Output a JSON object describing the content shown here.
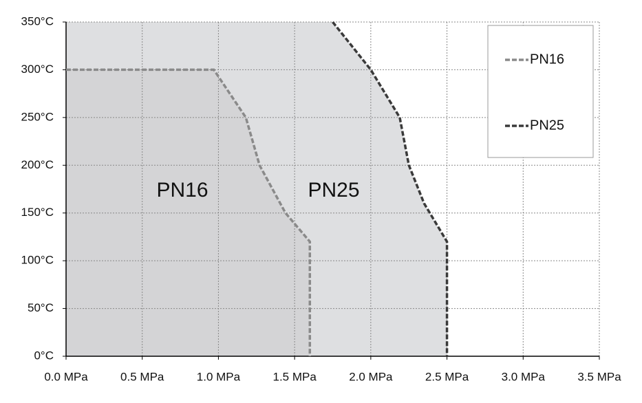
{
  "chart_data": {
    "type": "line",
    "xlim": [
      0,
      3.5
    ],
    "ylim": [
      0,
      350
    ],
    "xticks": [
      {
        "value": 0,
        "label": "0.0 MPa"
      },
      {
        "value": 0.5,
        "label": "0.5 MPa"
      },
      {
        "value": 1,
        "label": "1.0 MPa"
      },
      {
        "value": 1.5,
        "label": "1.5 MPa"
      },
      {
        "value": 2,
        "label": "2.0 MPa"
      },
      {
        "value": 2.5,
        "label": "2.5 MPa"
      },
      {
        "value": 3,
        "label": "3.0 MPa"
      },
      {
        "value": 3.5,
        "label": "3.5 MPa"
      }
    ],
    "yticks": [
      {
        "value": 0,
        "label": "0°C"
      },
      {
        "value": 50,
        "label": "50°C"
      },
      {
        "value": 100,
        "label": "100°C"
      },
      {
        "value": 150,
        "label": "150°C"
      },
      {
        "value": 200,
        "label": "200°C"
      },
      {
        "value": 250,
        "label": "250°C"
      },
      {
        "value": 300,
        "label": "300°C"
      },
      {
        "value": 350,
        "label": "350°C"
      }
    ],
    "grid": true,
    "legend": "upper right",
    "annotations": [
      "PN16",
      "PN25"
    ],
    "series": [
      {
        "name": "PN16",
        "color": "#8a8a8a",
        "fill": "#d4d4d6",
        "x": [
          0,
          0.97,
          1.18,
          1.27,
          1.44,
          1.6,
          1.6
        ],
        "values": [
          300,
          300,
          250,
          200,
          150,
          120,
          0
        ]
      },
      {
        "name": "PN25",
        "color": "#3a3a3a",
        "fill": "#dedfe1",
        "x": [
          1.75,
          2.0,
          2.19,
          2.25,
          2.35,
          2.5,
          2.5
        ],
        "values": [
          350,
          300,
          250,
          200,
          160,
          120,
          0
        ]
      }
    ]
  }
}
